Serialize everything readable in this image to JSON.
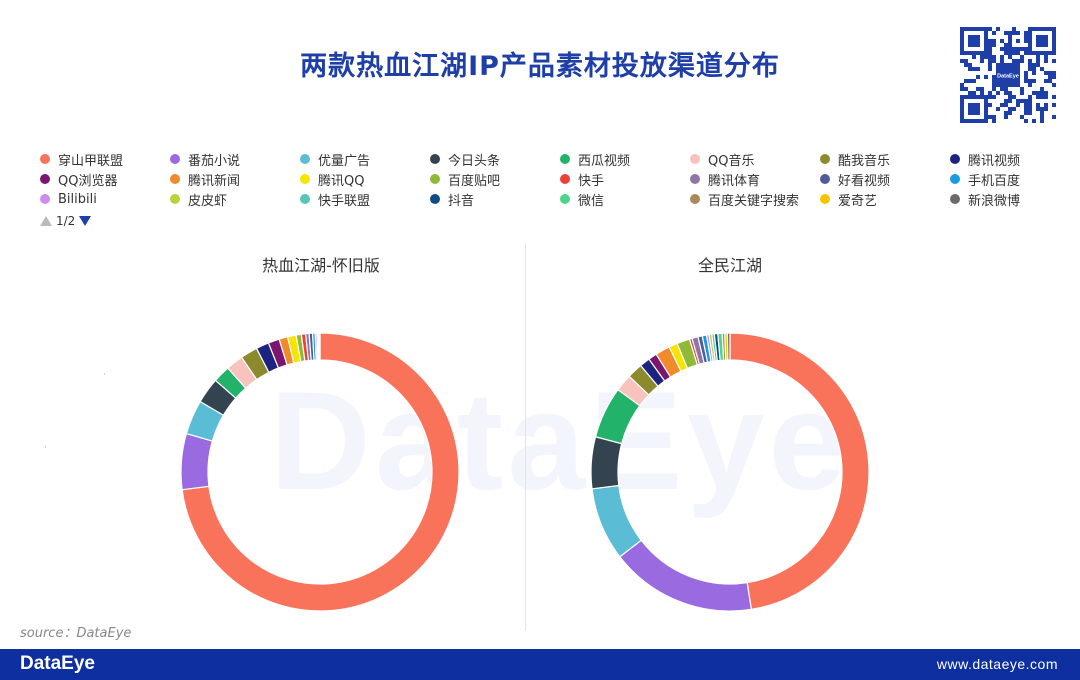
{
  "header": {
    "title": "两款热血江湖IP产品素材投放渠道分布",
    "qr_logo_text": "DataEye"
  },
  "pager": {
    "label": "1/2"
  },
  "source": "source：DataEye",
  "watermark": "DataEye",
  "footer": {
    "logo": "DataEye",
    "url": "www.dataeye.com"
  },
  "chart_data": [
    {
      "type": "pie",
      "donut": true,
      "title": "热血江湖-怀旧版",
      "legend_position": "top",
      "categories": [
        "穿山甲联盟",
        "番茄小说",
        "优量广告",
        "今日头条",
        "西瓜视频",
        "QQ音乐",
        "酷我音乐",
        "腾讯视频",
        "QQ浏览器",
        "腾讯新闻",
        "腾讯QQ",
        "百度贴吧",
        "快手",
        "腾讯体育",
        "好看视频",
        "手机百度",
        "Bilibili",
        "皮皮虾",
        "快手联盟",
        "抖音",
        "微信",
        "百度关键字搜索",
        "爱奇艺",
        "新浪微博"
      ],
      "values": [
        73.0,
        6.5,
        4.0,
        3.0,
        2.0,
        2.0,
        2.0,
        1.5,
        1.3,
        1.0,
        1.0,
        0.6,
        0.5,
        0.4,
        0.4,
        0.3,
        0.2,
        0.1,
        0.1,
        0.05,
        0.05,
        0.05,
        0.0,
        0.0
      ]
    },
    {
      "type": "pie",
      "donut": true,
      "title": "全民江湖",
      "legend_position": "top",
      "categories": [
        "穿山甲联盟",
        "番茄小说",
        "优量广告",
        "今日头条",
        "西瓜视频",
        "QQ音乐",
        "酷我音乐",
        "腾讯视频",
        "QQ浏览器",
        "腾讯新闻",
        "腾讯QQ",
        "百度贴吧",
        "快手",
        "腾讯体育",
        "好看视频",
        "手机百度",
        "Bilibili",
        "皮皮虾",
        "快手联盟",
        "抖音",
        "微信",
        "百度关键字搜索",
        "爱奇艺",
        "新浪微博"
      ],
      "values": [
        47.5,
        17.0,
        8.5,
        6.0,
        6.0,
        2.0,
        1.8,
        1.2,
        1.0,
        1.7,
        1.0,
        1.5,
        0.3,
        0.7,
        0.5,
        0.5,
        0.3,
        0.3,
        0.3,
        0.4,
        0.5,
        0.3,
        0.3,
        0.3
      ]
    }
  ],
  "legend": [
    {
      "label": "穿山甲联盟",
      "color": "#f9735b"
    },
    {
      "label": "番茄小说",
      "color": "#9a6ae0"
    },
    {
      "label": "优量广告",
      "color": "#5bbcd6"
    },
    {
      "label": "今日头条",
      "color": "#334450"
    },
    {
      "label": "西瓜视频",
      "color": "#23b26a"
    },
    {
      "label": "QQ音乐",
      "color": "#f8c2bd"
    },
    {
      "label": "酷我音乐",
      "color": "#8b8a2c"
    },
    {
      "label": "腾讯视频",
      "color": "#1d2380"
    },
    {
      "label": "QQ浏览器",
      "color": "#7c1570"
    },
    {
      "label": "腾讯新闻",
      "color": "#f08a2a"
    },
    {
      "label": "腾讯QQ",
      "color": "#f7e400"
    },
    {
      "label": "百度贴吧",
      "color": "#8fba38"
    },
    {
      "label": "快手",
      "color": "#ee4036"
    },
    {
      "label": "腾讯体育",
      "color": "#8e76a8"
    },
    {
      "label": "好看视频",
      "color": "#4e5d99"
    },
    {
      "label": "手机百度",
      "color": "#1a9ae0"
    },
    {
      "label": "Bilibili",
      "color": "#cf8cf0"
    },
    {
      "label": "皮皮虾",
      "color": "#b7d43a"
    },
    {
      "label": "快手联盟",
      "color": "#56c6b8"
    },
    {
      "label": "抖音",
      "color": "#0c4d86"
    },
    {
      "label": "微信",
      "color": "#4dd58a"
    },
    {
      "label": "百度关键字搜索",
      "color": "#a88a5a"
    },
    {
      "label": "爱奇艺",
      "color": "#f8c400"
    },
    {
      "label": "新浪微博",
      "color": "#6a6a6a"
    }
  ]
}
